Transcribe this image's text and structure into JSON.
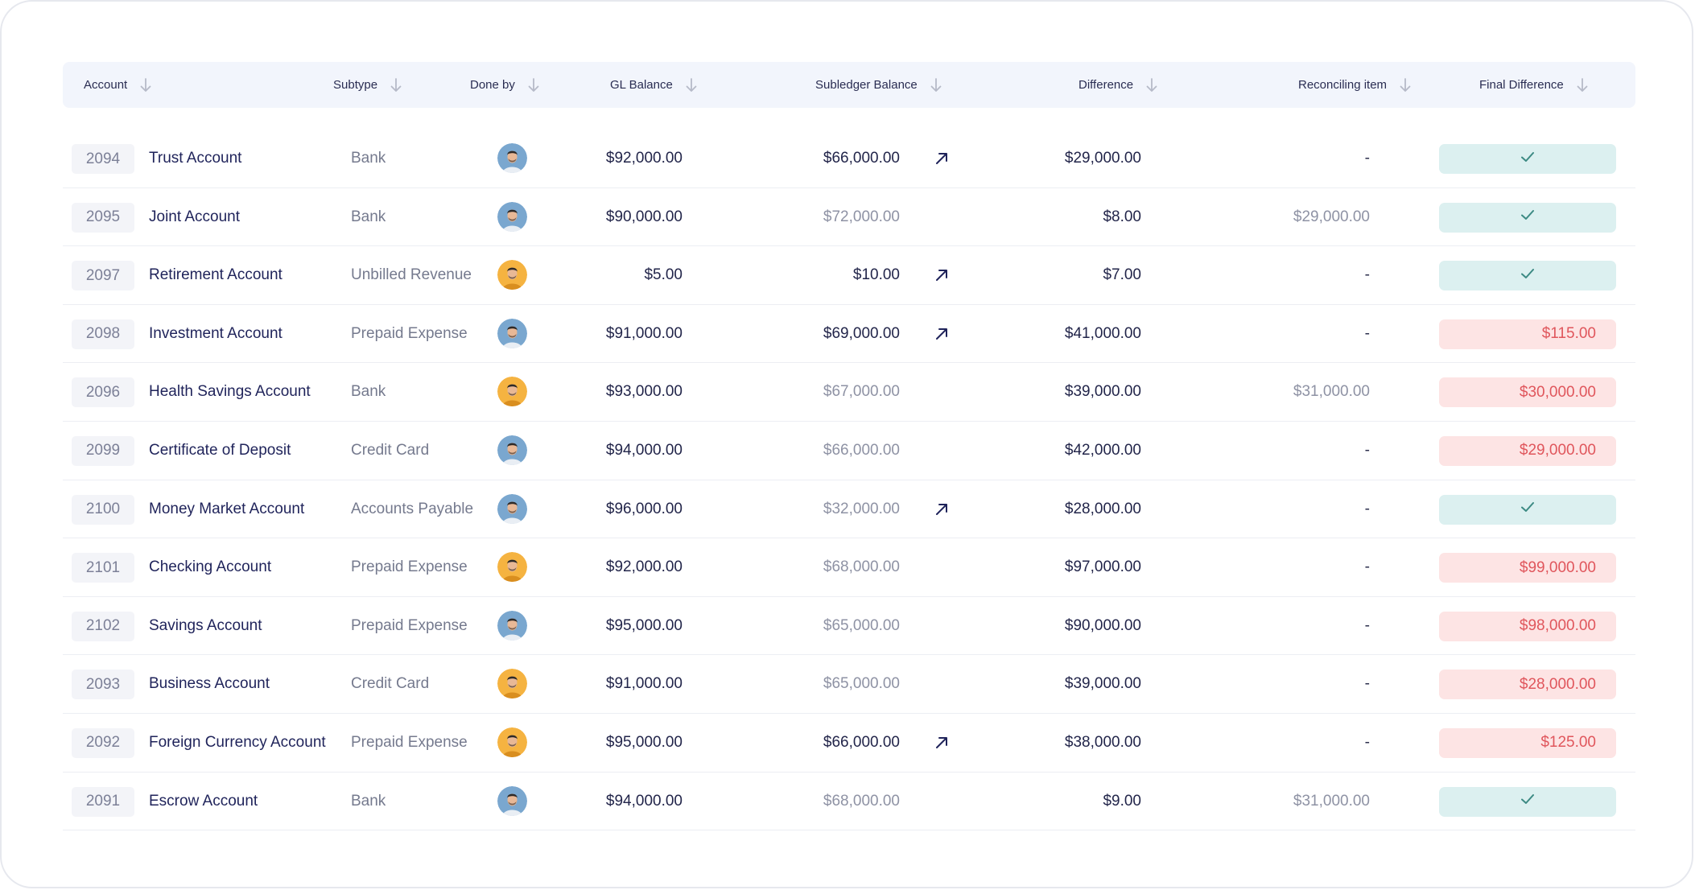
{
  "table": {
    "columns": [
      {
        "key": "account",
        "label": "Account"
      },
      {
        "key": "subtype",
        "label": "Subtype"
      },
      {
        "key": "done_by",
        "label": "Done by"
      },
      {
        "key": "gl_balance",
        "label": "GL Balance"
      },
      {
        "key": "subledger_balance",
        "label": "Subledger Balance"
      },
      {
        "key": "difference",
        "label": "Difference"
      },
      {
        "key": "reconciling_item",
        "label": "Reconciling item"
      },
      {
        "key": "final_difference",
        "label": "Final Difference"
      }
    ],
    "rows": [
      {
        "id": "2094",
        "account": "Trust Account",
        "subtype": "Bank",
        "avatar": "blue",
        "gl": "$92,000.00",
        "sub": "$66,000.00",
        "sub_muted": false,
        "link": true,
        "diff": "$29,000.00",
        "recon": "-",
        "final": "",
        "final_status": "ok"
      },
      {
        "id": "2095",
        "account": "Joint Account",
        "subtype": "Bank",
        "avatar": "blue",
        "gl": "$90,000.00",
        "sub": "$72,000.00",
        "sub_muted": true,
        "link": false,
        "diff": "$8.00",
        "recon": "$29,000.00",
        "final": "",
        "final_status": "ok"
      },
      {
        "id": "2097",
        "account": "Retirement Account",
        "subtype": "Unbilled Revenue",
        "avatar": "orange",
        "gl": "$5.00",
        "sub": "$10.00",
        "sub_muted": false,
        "link": true,
        "diff": "$7.00",
        "recon": "-",
        "final": "",
        "final_status": "ok"
      },
      {
        "id": "2098",
        "account": "Investment Account",
        "subtype": "Prepaid Expense",
        "avatar": "blue",
        "gl": "$91,000.00",
        "sub": "$69,000.00",
        "sub_muted": false,
        "link": true,
        "diff": "$41,000.00",
        "recon": "-",
        "final": "$115.00",
        "final_status": "bad"
      },
      {
        "id": "2096",
        "account": "Health Savings Account",
        "subtype": "Bank",
        "avatar": "orange",
        "gl": "$93,000.00",
        "sub": "$67,000.00",
        "sub_muted": true,
        "link": false,
        "diff": "$39,000.00",
        "recon": "$31,000.00",
        "final": "$30,000.00",
        "final_status": "bad"
      },
      {
        "id": "2099",
        "account": "Certificate of Deposit",
        "subtype": "Credit Card",
        "avatar": "blue",
        "gl": "$94,000.00",
        "sub": "$66,000.00",
        "sub_muted": true,
        "link": false,
        "diff": "$42,000.00",
        "recon": "-",
        "final": "$29,000.00",
        "final_status": "bad"
      },
      {
        "id": "2100",
        "account": "Money Market Account",
        "subtype": "Accounts Payable",
        "avatar": "blue",
        "gl": "$96,000.00",
        "sub": "$32,000.00",
        "sub_muted": true,
        "link": true,
        "diff": "$28,000.00",
        "recon": "-",
        "final": "",
        "final_status": "ok"
      },
      {
        "id": "2101",
        "account": "Checking Account",
        "subtype": "Prepaid Expense",
        "avatar": "orange",
        "gl": "$92,000.00",
        "sub": "$68,000.00",
        "sub_muted": true,
        "link": false,
        "diff": "$97,000.00",
        "recon": "-",
        "final": "$99,000.00",
        "final_status": "bad"
      },
      {
        "id": "2102",
        "account": "Savings Account",
        "subtype": "Prepaid Expense",
        "avatar": "blue",
        "gl": "$95,000.00",
        "sub": "$65,000.00",
        "sub_muted": true,
        "link": false,
        "diff": "$90,000.00",
        "recon": "-",
        "final": "$98,000.00",
        "final_status": "bad"
      },
      {
        "id": "2093",
        "account": "Business Account",
        "subtype": "Credit Card",
        "avatar": "orange",
        "gl": "$91,000.00",
        "sub": "$65,000.00",
        "sub_muted": true,
        "link": false,
        "diff": "$39,000.00",
        "recon": "-",
        "final": "$28,000.00",
        "final_status": "bad"
      },
      {
        "id": "2092",
        "account": "Foreign Currency Account",
        "subtype": "Prepaid Expense",
        "avatar": "orange",
        "gl": "$95,000.00",
        "sub": "$66,000.00",
        "sub_muted": false,
        "link": true,
        "diff": "$38,000.00",
        "recon": "-",
        "final": "$125.00",
        "final_status": "bad"
      },
      {
        "id": "2091",
        "account": "Escrow Account",
        "subtype": "Bank",
        "avatar": "blue",
        "gl": "$94,000.00",
        "sub": "$68,000.00",
        "sub_muted": true,
        "link": false,
        "diff": "$9.00",
        "recon": "$31,000.00",
        "final": "",
        "final_status": "ok"
      }
    ]
  },
  "colors": {
    "header_bg": "#f2f5fc",
    "ok_bg": "#dcf0f0",
    "ok_check": "#3c8a83",
    "bad_bg": "#fde4e4",
    "bad_text": "#e0565c",
    "account_text": "#1f235a",
    "avatar_blue": "#7aa7cf",
    "avatar_orange": "#f5b341"
  },
  "icons": {
    "sort": "arrow-down-icon",
    "link": "arrow-up-right-icon",
    "ok": "check-icon"
  }
}
